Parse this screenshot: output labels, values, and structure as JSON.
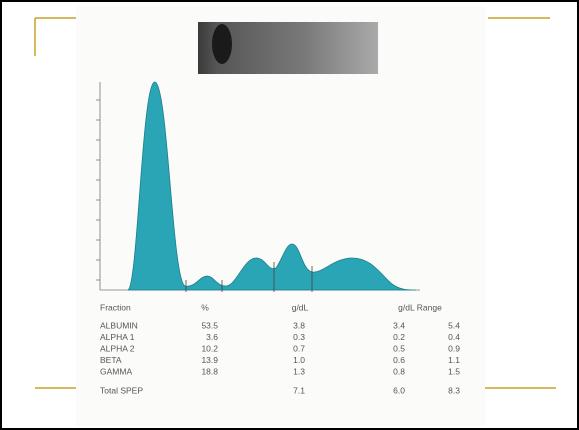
{
  "table": {
    "header": [
      "Fraction",
      "%",
      "g/dL",
      "g/dL Range"
    ],
    "rows": [
      [
        "ALBUMIN",
        "53.5",
        "3.8",
        "3.4",
        "5.4"
      ],
      [
        "ALPHA 1",
        "3.6",
        "0.3",
        "0.2",
        "0.4"
      ],
      [
        "ALPHA 2",
        "10.2",
        "0.7",
        "0.5",
        "0.9"
      ],
      [
        "BETA",
        "13.9",
        "1.0",
        "0.6",
        "1.1"
      ],
      [
        "GAMMA",
        "18.8",
        "1.3",
        "0.8",
        "1.5"
      ]
    ],
    "total": [
      "Total SPEP",
      "7.1",
      "6.0",
      "8.3"
    ]
  }
}
